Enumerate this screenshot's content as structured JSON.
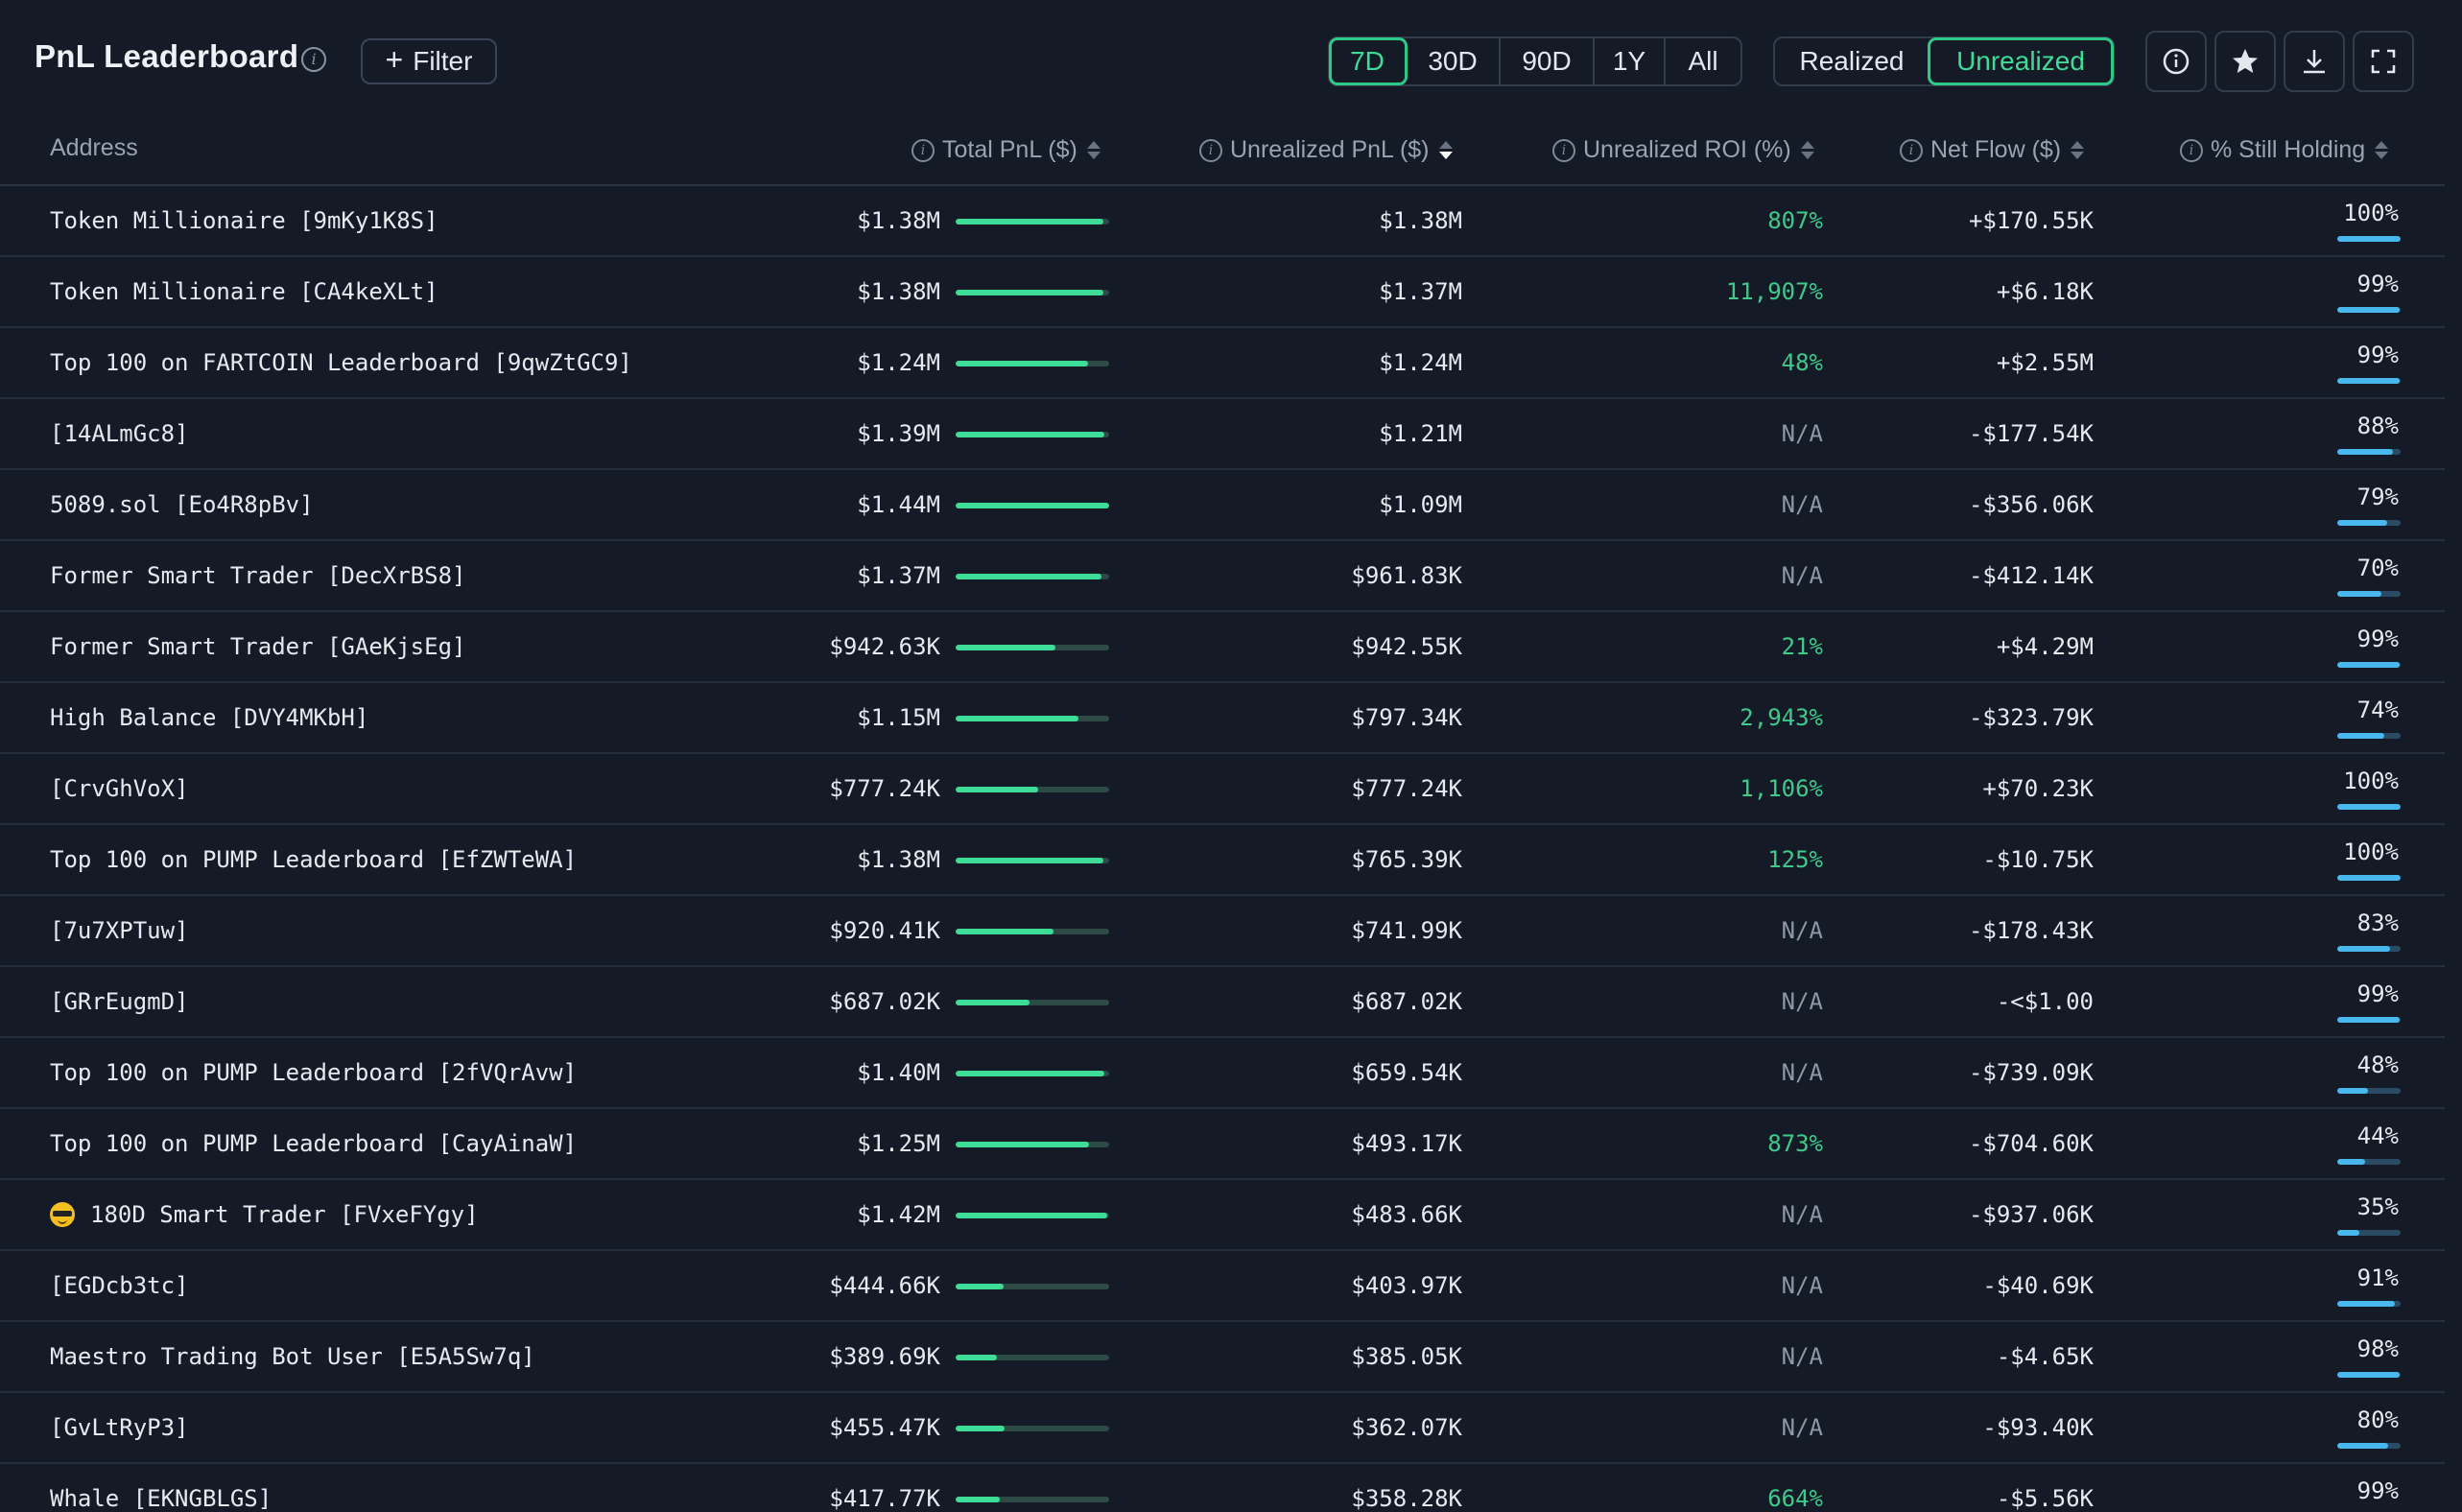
{
  "header": {
    "title": "PnL Leaderboard",
    "filter_label": "Filter",
    "periods": [
      "7D",
      "30D",
      "90D",
      "1Y",
      "All"
    ],
    "active_period": "7D",
    "modes": [
      "Realized",
      "Unrealized"
    ],
    "active_mode": "Unrealized"
  },
  "columns": {
    "address": "Address",
    "total_pnl": "Total PnL ($)",
    "unrealized_pnl": "Unrealized PnL ($)",
    "unrealized_roi": "Unrealized ROI (%)",
    "net_flow": "Net Flow ($)",
    "still_holding": "% Still Holding"
  },
  "sorted_column": "unrealized_pnl",
  "sort_direction": "desc",
  "colors": {
    "accent": "#3ddc97",
    "positive": "#3fc98a",
    "na": "#8e97a5",
    "hold_bar": "#48b8ee",
    "background": "#141b27"
  },
  "rows": [
    {
      "address": "Token Millionaire [9mKy1K8S]",
      "total_pnl": "$1.38M",
      "total_pnl_fraction": 0.96,
      "unrealized_pnl": "$1.38M",
      "roi": "807%",
      "roi_type": "pos",
      "net_flow": "+$170.55K",
      "holding": "100%",
      "holding_fraction": 1.0
    },
    {
      "address": "Token Millionaire [CA4keXLt]",
      "total_pnl": "$1.38M",
      "total_pnl_fraction": 0.96,
      "unrealized_pnl": "$1.37M",
      "roi": "11,907%",
      "roi_type": "pos",
      "net_flow": "+$6.18K",
      "holding": "99%",
      "holding_fraction": 0.99
    },
    {
      "address": "Top 100 on FARTCOIN Leaderboard [9qwZtGC9]",
      "total_pnl": "$1.24M",
      "total_pnl_fraction": 0.86,
      "unrealized_pnl": "$1.24M",
      "roi": "48%",
      "roi_type": "pos",
      "net_flow": "+$2.55M",
      "holding": "99%",
      "holding_fraction": 0.99
    },
    {
      "address": "[14ALmGc8]",
      "total_pnl": "$1.39M",
      "total_pnl_fraction": 0.97,
      "unrealized_pnl": "$1.21M",
      "roi": "N/A",
      "roi_type": "na",
      "net_flow": "-$177.54K",
      "holding": "88%",
      "holding_fraction": 0.88
    },
    {
      "address": "5089.sol [Eo4R8pBv]",
      "total_pnl": "$1.44M",
      "total_pnl_fraction": 1.0,
      "unrealized_pnl": "$1.09M",
      "roi": "N/A",
      "roi_type": "na",
      "net_flow": "-$356.06K",
      "holding": "79%",
      "holding_fraction": 0.79
    },
    {
      "address": "Former Smart Trader [DecXrBS8]",
      "total_pnl": "$1.37M",
      "total_pnl_fraction": 0.95,
      "unrealized_pnl": "$961.83K",
      "roi": "N/A",
      "roi_type": "na",
      "net_flow": "-$412.14K",
      "holding": "70%",
      "holding_fraction": 0.7
    },
    {
      "address": "Former Smart Trader [GAeKjsEg]",
      "total_pnl": "$942.63K",
      "total_pnl_fraction": 0.65,
      "unrealized_pnl": "$942.55K",
      "roi": "21%",
      "roi_type": "pos",
      "net_flow": "+$4.29M",
      "holding": "99%",
      "holding_fraction": 0.99
    },
    {
      "address": "High Balance [DVY4MKbH]",
      "total_pnl": "$1.15M",
      "total_pnl_fraction": 0.8,
      "unrealized_pnl": "$797.34K",
      "roi": "2,943%",
      "roi_type": "pos",
      "net_flow": "-$323.79K",
      "holding": "74%",
      "holding_fraction": 0.74
    },
    {
      "address": "[CrvGhVoX]",
      "total_pnl": "$777.24K",
      "total_pnl_fraction": 0.54,
      "unrealized_pnl": "$777.24K",
      "roi": "1,106%",
      "roi_type": "pos",
      "net_flow": "+$70.23K",
      "holding": "100%",
      "holding_fraction": 1.0
    },
    {
      "address": "Top 100 on PUMP Leaderboard [EfZWTeWA]",
      "total_pnl": "$1.38M",
      "total_pnl_fraction": 0.96,
      "unrealized_pnl": "$765.39K",
      "roi": "125%",
      "roi_type": "pos",
      "net_flow": "-$10.75K",
      "holding": "100%",
      "holding_fraction": 1.0
    },
    {
      "address": "[7u7XPTuw]",
      "total_pnl": "$920.41K",
      "total_pnl_fraction": 0.64,
      "unrealized_pnl": "$741.99K",
      "roi": "N/A",
      "roi_type": "na",
      "net_flow": "-$178.43K",
      "holding": "83%",
      "holding_fraction": 0.83
    },
    {
      "address": "[GRrEugmD]",
      "total_pnl": "$687.02K",
      "total_pnl_fraction": 0.48,
      "unrealized_pnl": "$687.02K",
      "roi": "N/A",
      "roi_type": "na",
      "net_flow": "-<$1.00",
      "holding": "99%",
      "holding_fraction": 0.99
    },
    {
      "address": "Top 100 on PUMP Leaderboard [2fVQrAvw]",
      "total_pnl": "$1.40M",
      "total_pnl_fraction": 0.97,
      "unrealized_pnl": "$659.54K",
      "roi": "N/A",
      "roi_type": "na",
      "net_flow": "-$739.09K",
      "holding": "48%",
      "holding_fraction": 0.48
    },
    {
      "address": "Top 100 on PUMP Leaderboard [CayAinaW]",
      "total_pnl": "$1.25M",
      "total_pnl_fraction": 0.87,
      "unrealized_pnl": "$493.17K",
      "roi": "873%",
      "roi_type": "pos",
      "net_flow": "-$704.60K",
      "holding": "44%",
      "holding_fraction": 0.44
    },
    {
      "address": "180D Smart Trader [FVxeFYgy]",
      "total_pnl": "$1.42M",
      "total_pnl_fraction": 0.99,
      "unrealized_pnl": "$483.66K",
      "roi": "N/A",
      "roi_type": "na",
      "net_flow": "-$937.06K",
      "holding": "35%",
      "holding_fraction": 0.35,
      "icon": "sunglasses-emoji-icon"
    },
    {
      "address": "[EGDcb3tc]",
      "total_pnl": "$444.66K",
      "total_pnl_fraction": 0.31,
      "unrealized_pnl": "$403.97K",
      "roi": "N/A",
      "roi_type": "na",
      "net_flow": "-$40.69K",
      "holding": "91%",
      "holding_fraction": 0.91
    },
    {
      "address": "Maestro Trading Bot User [E5A5Sw7q]",
      "total_pnl": "$389.69K",
      "total_pnl_fraction": 0.27,
      "unrealized_pnl": "$385.05K",
      "roi": "N/A",
      "roi_type": "na",
      "net_flow": "-$4.65K",
      "holding": "98%",
      "holding_fraction": 0.98
    },
    {
      "address": "[GvLtRyP3]",
      "total_pnl": "$455.47K",
      "total_pnl_fraction": 0.32,
      "unrealized_pnl": "$362.07K",
      "roi": "N/A",
      "roi_type": "na",
      "net_flow": "-$93.40K",
      "holding": "80%",
      "holding_fraction": 0.8
    },
    {
      "address": "Whale [EKNGBLGS]",
      "total_pnl": "$417.77K",
      "total_pnl_fraction": 0.29,
      "unrealized_pnl": "$358.28K",
      "roi": "664%",
      "roi_type": "pos",
      "net_flow": "-$5.56K",
      "holding": "99%",
      "holding_fraction": 0.99
    }
  ]
}
